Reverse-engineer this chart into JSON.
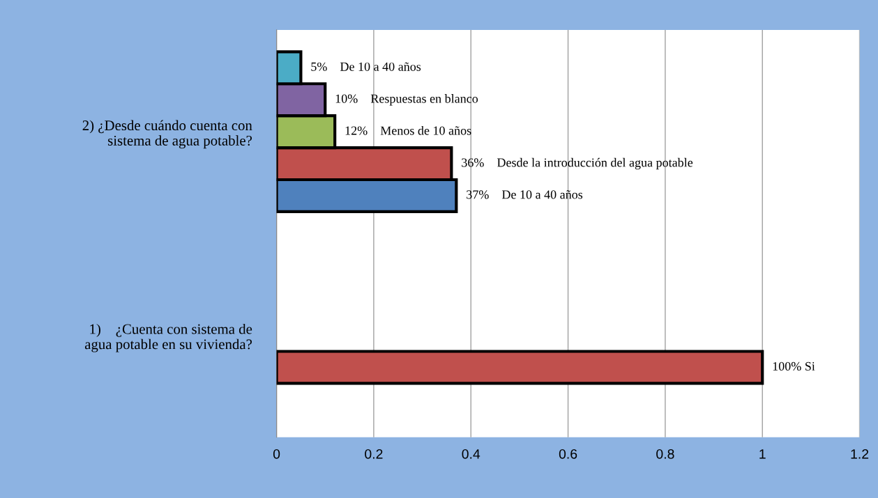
{
  "chart_data": {
    "type": "bar",
    "orientation": "horizontal",
    "categories": [
      "2) ¿Desde cuándo cuenta con\nsistema de agua potable?",
      "1)    ¿Cuenta con sistema de\nagua potable en su vivienda?"
    ],
    "series": [
      {
        "color": "#4f81bd",
        "values": [
          0.37,
          null
        ],
        "value_labels": [
          "37%    De 10 a 40 años",
          null
        ]
      },
      {
        "color": "#c0504d",
        "values": [
          0.36,
          1
        ],
        "value_labels": [
          "36%    Desde la introducción del agua potable",
          "100% Si"
        ]
      },
      {
        "color": "#9bbb59",
        "values": [
          0.12,
          null
        ],
        "value_labels": [
          "12%    Menos de 10 años",
          null
        ]
      },
      {
        "color": "#8064a2",
        "values": [
          0.1,
          null
        ],
        "value_labels": [
          "10%    Respuestas en blanco",
          null
        ]
      },
      {
        "color": "#4bacc6",
        "values": [
          0.05,
          null
        ],
        "value_labels": [
          "5%    De 10 a 40 años",
          null
        ]
      }
    ],
    "xlim": [
      0,
      1.2
    ],
    "xticks": [
      0,
      0.2,
      0.4,
      0.6,
      0.8,
      1,
      1.2
    ],
    "grid": "x",
    "legend": false
  }
}
